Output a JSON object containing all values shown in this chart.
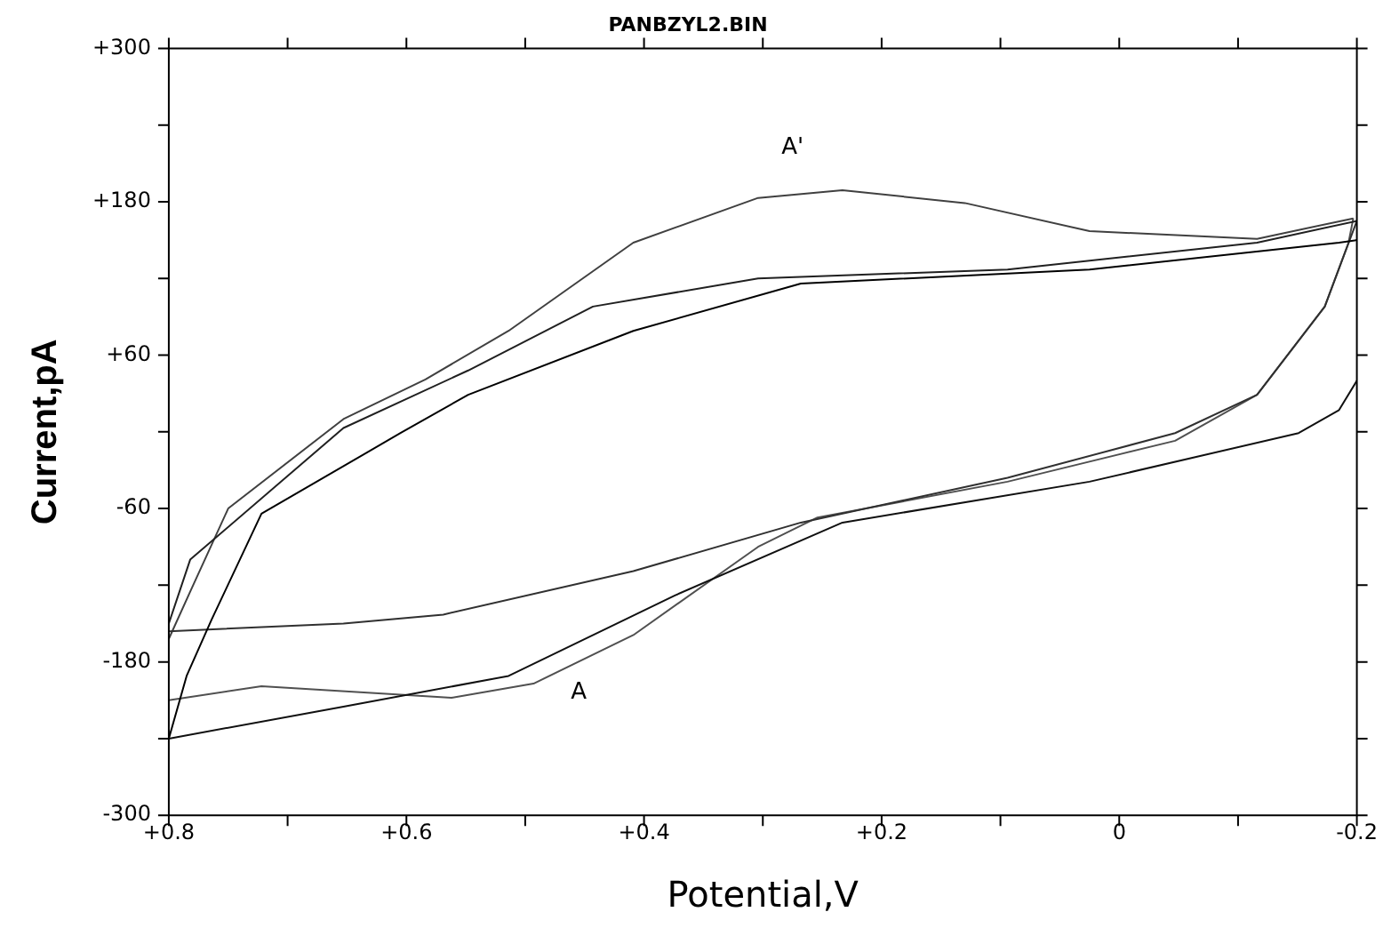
{
  "chart_data": {
    "type": "line",
    "title": "PANBZYL2.BIN",
    "xlabel": "Potential,V",
    "ylabel": "Current,pA",
    "xlim": [
      0.8,
      -0.2
    ],
    "ylim": [
      -300,
      300
    ],
    "xticks": [
      {
        "value": 0.8,
        "label": "+0.8"
      },
      {
        "value": 0.7,
        "label": null
      },
      {
        "value": 0.6,
        "label": "+0.6"
      },
      {
        "value": 0.5,
        "label": null
      },
      {
        "value": 0.4,
        "label": "+0.4"
      },
      {
        "value": 0.3,
        "label": null
      },
      {
        "value": 0.2,
        "label": "+0.2"
      },
      {
        "value": 0.1,
        "label": null
      },
      {
        "value": 0,
        "label": "0"
      },
      {
        "value": -0.1,
        "label": null
      },
      {
        "value": -0.2,
        "label": "-0.2"
      }
    ],
    "yticks": [
      {
        "value": -300,
        "label": "-300"
      },
      {
        "value": -240,
        "label": null
      },
      {
        "value": -180,
        "label": "-180"
      },
      {
        "value": -120,
        "label": null
      },
      {
        "value": -60,
        "label": "-60"
      },
      {
        "value": 0,
        "label": null
      },
      {
        "value": 60,
        "label": "+60"
      },
      {
        "value": 120,
        "label": null
      },
      {
        "value": 180,
        "label": "+180"
      },
      {
        "value": 240,
        "label": null
      },
      {
        "value": 300,
        "label": "+300"
      }
    ],
    "grid": false,
    "legend": false,
    "marker": "none",
    "line_style": "solid",
    "annotations": [
      "A'",
      "A"
    ],
    "series": [
      {
        "color": "#000000",
        "x": [
          -0.2,
          -0.185,
          0.025,
          0.268,
          0.409,
          0.548,
          0.605,
          0.722,
          0.764,
          0.785,
          0.8
        ],
        "values": [
          150,
          148,
          127,
          116,
          79,
          29,
          -1,
          -64,
          -147,
          -191,
          -240
        ]
      },
      {
        "color": "#101010",
        "x": [
          0.8,
          0.653,
          0.514,
          0.374,
          0.233,
          0.025,
          -0.151,
          -0.185,
          -0.2
        ],
        "values": [
          -240,
          -215,
          -191,
          -128,
          -71,
          -39,
          -1,
          17,
          40
        ]
      },
      {
        "color": "#202020",
        "x": [
          -0.2,
          -0.116,
          0.094,
          0.304,
          0.443,
          0.548,
          0.653,
          0.782,
          0.8
        ],
        "values": [
          165,
          148,
          127,
          120,
          98,
          48,
          3,
          -100,
          -150
        ]
      },
      {
        "color": "#303030",
        "x": [
          0.8,
          0.653,
          0.569,
          0.409,
          0.268,
          0.094,
          -0.047,
          -0.116,
          -0.173,
          -0.2
        ],
        "values": [
          -156,
          -150,
          -143,
          -109,
          -71,
          -36,
          -1,
          29,
          98,
          165
        ]
      },
      {
        "color": "#404040",
        "x": [
          -0.197,
          -0.116,
          0.025,
          0.13,
          0.233,
          0.304,
          0.409,
          0.514,
          0.584,
          0.653,
          0.75,
          0.782,
          0.8
        ],
        "values": [
          167,
          151,
          157,
          179,
          189,
          183,
          148,
          79,
          41,
          10,
          -60,
          -125,
          -162
        ]
      },
      {
        "color": "#505050",
        "x": [
          0.8,
          0.722,
          0.562,
          0.493,
          0.409,
          0.304,
          0.254,
          0.094,
          -0.047,
          -0.116,
          -0.173,
          -0.193,
          -0.197
        ],
        "values": [
          -210,
          -199,
          -208,
          -197,
          -159,
          -90,
          -67,
          -39,
          -7,
          29,
          98,
          148,
          167
        ]
      }
    ]
  }
}
